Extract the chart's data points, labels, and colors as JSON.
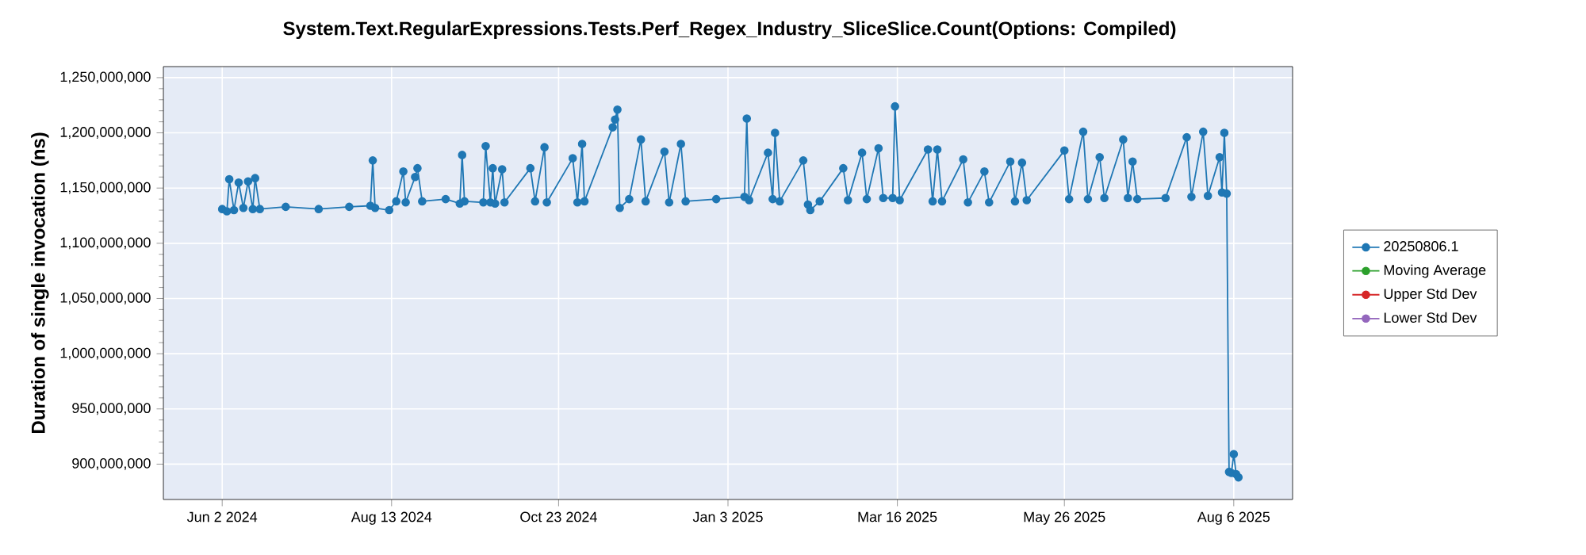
{
  "chart_data": {
    "type": "line",
    "title": "System.Text.RegularExpressions.Tests.Perf_Regex_Industry_SliceSlice.Count(Options: Compiled)",
    "ylabel": "Duration of single invocation (ns)",
    "x": [
      "2024-06-02",
      "2024-06-04",
      "2024-06-05",
      "2024-06-07",
      "2024-06-09",
      "2024-06-11",
      "2024-06-13",
      "2024-06-15",
      "2024-06-16",
      "2024-06-18",
      "2024-06-29",
      "2024-07-13",
      "2024-07-26",
      "2024-08-04",
      "2024-08-05",
      "2024-08-06",
      "2024-08-12",
      "2024-08-15",
      "2024-08-18",
      "2024-08-19",
      "2024-08-23",
      "2024-08-24",
      "2024-08-26",
      "2024-09-05",
      "2024-09-11",
      "2024-09-12",
      "2024-09-13",
      "2024-09-21",
      "2024-09-22",
      "2024-09-24",
      "2024-09-25",
      "2024-09-26",
      "2024-09-29",
      "2024-09-30",
      "2024-10-11",
      "2024-10-13",
      "2024-10-17",
      "2024-10-18",
      "2024-10-29",
      "2024-10-31",
      "2024-11-02",
      "2024-11-03",
      "2024-11-15",
      "2024-11-16",
      "2024-11-17",
      "2024-11-18",
      "2024-11-22",
      "2024-11-27",
      "2024-11-29",
      "2024-12-07",
      "2024-12-09",
      "2024-12-14",
      "2024-12-16",
      "2024-12-29",
      "2025-01-10",
      "2025-01-11",
      "2025-01-12",
      "2025-01-20",
      "2025-01-22",
      "2025-01-23",
      "2025-01-25",
      "2025-02-04",
      "2025-02-06",
      "2025-02-07",
      "2025-02-11",
      "2025-02-21",
      "2025-02-23",
      "2025-03-01",
      "2025-03-03",
      "2025-03-08",
      "2025-03-10",
      "2025-03-14",
      "2025-03-15",
      "2025-03-17",
      "2025-03-29",
      "2025-03-31",
      "2025-04-02",
      "2025-04-04",
      "2025-04-13",
      "2025-04-15",
      "2025-04-22",
      "2025-04-24",
      "2025-05-03",
      "2025-05-05",
      "2025-05-08",
      "2025-05-10",
      "2025-05-26",
      "2025-05-28",
      "2025-06-03",
      "2025-06-05",
      "2025-06-10",
      "2025-06-12",
      "2025-06-20",
      "2025-06-22",
      "2025-06-24",
      "2025-06-26",
      "2025-07-08",
      "2025-07-17",
      "2025-07-19",
      "2025-07-24",
      "2025-07-26",
      "2025-07-31",
      "2025-08-01",
      "2025-08-02",
      "2025-08-03",
      "2025-08-04",
      "2025-08-05",
      "2025-08-06",
      "2025-08-07",
      "2025-08-08"
    ],
    "series": [
      {
        "name": "20250806.1",
        "color": "#1f77b4",
        "values": [
          1131000000,
          1129000000,
          1158000000,
          1130000000,
          1155000000,
          1132000000,
          1156000000,
          1131000000,
          1159000000,
          1131000000,
          1133000000,
          1131000000,
          1133000000,
          1134000000,
          1175000000,
          1132000000,
          1130000000,
          1138000000,
          1165000000,
          1137000000,
          1160000000,
          1168000000,
          1138000000,
          1140000000,
          1136000000,
          1180000000,
          1138000000,
          1137000000,
          1188000000,
          1137000000,
          1168000000,
          1136000000,
          1167000000,
          1137000000,
          1168000000,
          1138000000,
          1187000000,
          1137000000,
          1177000000,
          1137000000,
          1190000000,
          1138000000,
          1205000000,
          1212000000,
          1221000000,
          1132000000,
          1140000000,
          1194000000,
          1138000000,
          1183000000,
          1137000000,
          1190000000,
          1138000000,
          1140000000,
          1142000000,
          1213000000,
          1139000000,
          1182000000,
          1140000000,
          1200000000,
          1138000000,
          1175000000,
          1135000000,
          1130000000,
          1138000000,
          1168000000,
          1139000000,
          1182000000,
          1140000000,
          1186000000,
          1141000000,
          1141000000,
          1224000000,
          1139000000,
          1185000000,
          1138000000,
          1185000000,
          1138000000,
          1176000000,
          1137000000,
          1165000000,
          1137000000,
          1174000000,
          1138000000,
          1173000000,
          1139000000,
          1184000000,
          1140000000,
          1201000000,
          1140000000,
          1178000000,
          1141000000,
          1194000000,
          1141000000,
          1174000000,
          1140000000,
          1141000000,
          1196000000,
          1142000000,
          1201000000,
          1143000000,
          1178000000,
          1146000000,
          1200000000,
          1145000000,
          893000000,
          892000000,
          909000000,
          891000000,
          888000000
        ]
      },
      {
        "name": "Moving Average",
        "color": "#2ca02c",
        "values": [
          null,
          null,
          null,
          null,
          null,
          null,
          null,
          null,
          null,
          null,
          null,
          null,
          null,
          null,
          null,
          null,
          null,
          null,
          null,
          null,
          null,
          null,
          null,
          null,
          null,
          null,
          null,
          null,
          null,
          null,
          null,
          null,
          null,
          null,
          null,
          null,
          null,
          null,
          null,
          null,
          null,
          null,
          null,
          null,
          null,
          null,
          null,
          null,
          null,
          null,
          null,
          null,
          null,
          null,
          null,
          null,
          null,
          null,
          null,
          null,
          null,
          null,
          null,
          null,
          null,
          null,
          null,
          null,
          null,
          null,
          null,
          null,
          null,
          null,
          null,
          null,
          null,
          null,
          null,
          null,
          null,
          null,
          null,
          null,
          null,
          null,
          null,
          null,
          null,
          null,
          null,
          null,
          null,
          null,
          null,
          null,
          null,
          null,
          null,
          null,
          null,
          null,
          null,
          null,
          null,
          null,
          null,
          null,
          null,
          null
        ]
      },
      {
        "name": "Upper Std Dev",
        "color": "#d62728",
        "values": [
          null,
          null,
          null,
          null,
          null,
          null,
          null,
          null,
          null,
          null,
          null,
          null,
          null,
          null,
          null,
          null,
          null,
          null,
          null,
          null,
          null,
          null,
          null,
          null,
          null,
          null,
          null,
          null,
          null,
          null,
          null,
          null,
          null,
          null,
          null,
          null,
          null,
          null,
          null,
          null,
          null,
          null,
          null,
          null,
          null,
          null,
          null,
          null,
          null,
          null,
          null,
          null,
          null,
          null,
          null,
          null,
          null,
          null,
          null,
          null,
          null,
          null,
          null,
          null,
          null,
          null,
          null,
          null,
          null,
          null,
          null,
          null,
          null,
          null,
          null,
          null,
          null,
          null,
          null,
          null,
          null,
          null,
          null,
          null,
          null,
          null,
          null,
          null,
          null,
          null,
          null,
          null,
          null,
          null,
          null,
          null,
          null,
          null,
          null,
          null,
          null,
          null,
          null,
          null,
          null,
          null,
          null,
          null,
          null,
          null
        ]
      },
      {
        "name": "Lower Std Dev",
        "color": "#9467bd",
        "values": [
          null,
          null,
          null,
          null,
          null,
          null,
          null,
          null,
          null,
          null,
          null,
          null,
          null,
          null,
          null,
          null,
          null,
          null,
          null,
          null,
          null,
          null,
          null,
          null,
          null,
          null,
          null,
          null,
          null,
          null,
          null,
          null,
          null,
          null,
          null,
          null,
          null,
          null,
          null,
          null,
          null,
          null,
          null,
          null,
          null,
          null,
          null,
          null,
          null,
          null,
          null,
          null,
          null,
          null,
          null,
          null,
          null,
          null,
          null,
          null,
          null,
          null,
          null,
          null,
          null,
          null,
          null,
          null,
          null,
          null,
          null,
          null,
          null,
          null,
          null,
          null,
          null,
          null,
          null,
          null,
          null,
          null,
          null,
          null,
          null,
          null,
          null,
          null,
          null,
          null,
          null,
          null,
          null,
          null,
          null,
          null,
          null,
          null,
          null,
          null,
          null,
          null,
          null,
          null,
          null,
          null,
          null,
          null,
          null,
          null
        ]
      }
    ],
    "xlim": [
      "2024-05-08",
      "2025-08-31"
    ],
    "xticks": [
      {
        "value": "2024-06-02",
        "label": "Jun 2 2024"
      },
      {
        "value": "2024-08-13",
        "label": "Aug 13 2024"
      },
      {
        "value": "2024-10-23",
        "label": "Oct 23 2024"
      },
      {
        "value": "2025-01-03",
        "label": "Jan 3 2025"
      },
      {
        "value": "2025-03-16",
        "label": "Mar 16 2025"
      },
      {
        "value": "2025-05-26",
        "label": "May 26 2025"
      },
      {
        "value": "2025-08-06",
        "label": "Aug 6 2025"
      }
    ],
    "ylim": [
      868000000,
      1260000000
    ],
    "yticks": [
      {
        "value": 900000000,
        "label": "900,000,000"
      },
      {
        "value": 950000000,
        "label": "950,000,000"
      },
      {
        "value": 1000000000,
        "label": "1,000,000,000"
      },
      {
        "value": 1050000000,
        "label": "1,050,000,000"
      },
      {
        "value": 1100000000,
        "label": "1,100,000,000"
      },
      {
        "value": 1150000000,
        "label": "1,150,000,000"
      },
      {
        "value": 1200000000,
        "label": "1,200,000,000"
      },
      {
        "value": 1250000000,
        "label": "1,250,000,000"
      }
    ],
    "grid": true,
    "legend": "right",
    "marker": "circle",
    "line_style": "solid"
  }
}
